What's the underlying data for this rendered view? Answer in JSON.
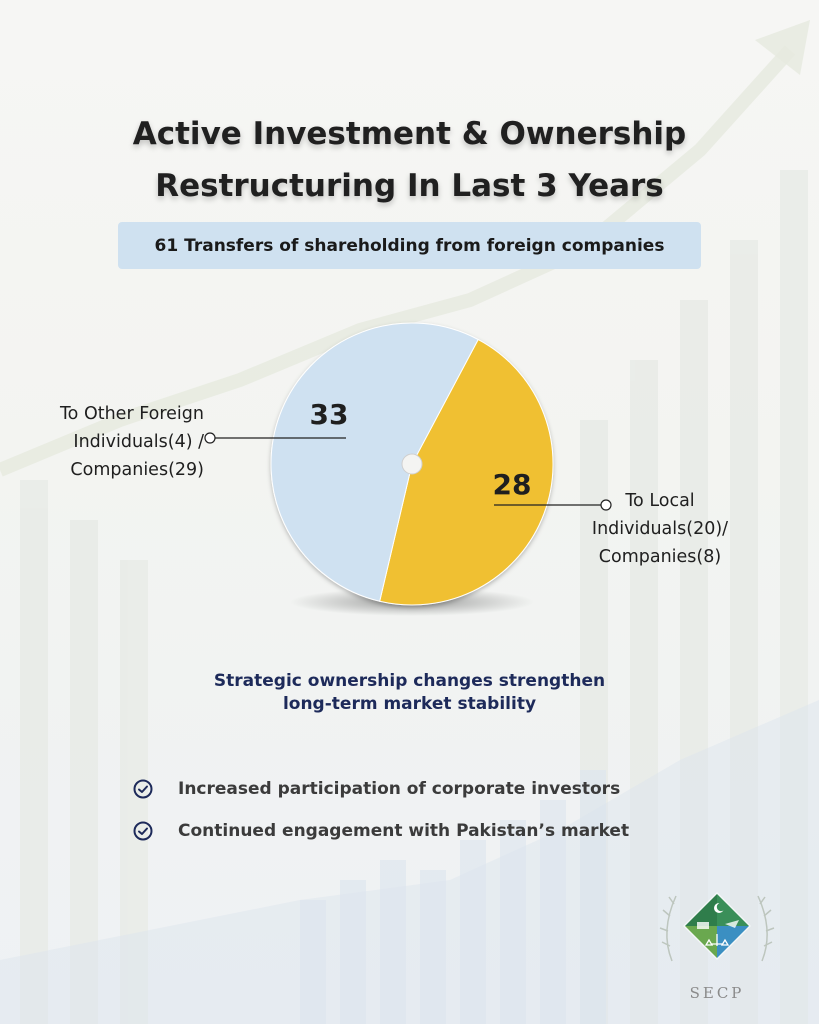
{
  "title": {
    "line1": "Active Investment & Ownership",
    "line2": "Restructuring In Last 3 Years"
  },
  "banner": "61 Transfers of shareholding from foreign companies",
  "chart_data": {
    "type": "pie",
    "slices": [
      {
        "label": "To Other Foreign Individuals(4) / Companies(29)",
        "value": 33,
        "color": "#cfe1f1"
      },
      {
        "label": "To Local Individuals(20)/ Companies(8)",
        "value": 28,
        "color": "#f0c030"
      }
    ],
    "total": 61
  },
  "labels": {
    "left": [
      "To Other Foreign",
      "Individuals(4) /",
      "Companies(29)"
    ],
    "right": [
      "To Local",
      "Individuals(20)/",
      "Companies(8)"
    ]
  },
  "tagline": {
    "line1": "Strategic ownership changes strengthen",
    "line2": "long-term market stability"
  },
  "bullets": [
    "Increased participation of corporate investors",
    "Continued engagement with Pakistan’s market"
  ],
  "logo": {
    "text": "SECP",
    "icon": "secp-emblem-icon"
  },
  "colors": {
    "accent": "#f0c030",
    "light_blue": "#cfe1f1",
    "navy": "#1d2a5a"
  }
}
